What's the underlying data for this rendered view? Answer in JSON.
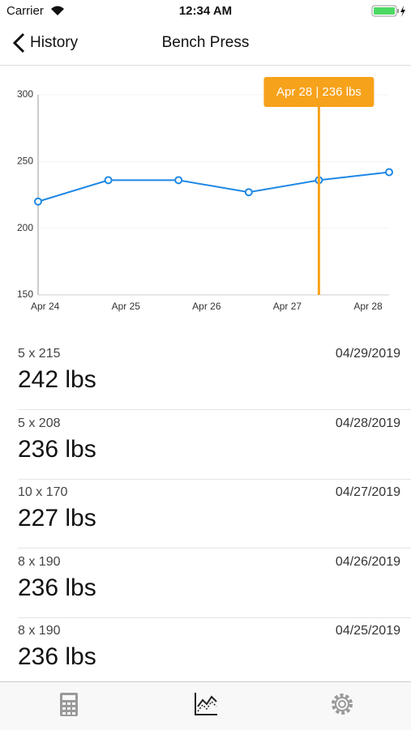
{
  "status_bar": {
    "carrier": "Carrier",
    "time": "12:34 AM"
  },
  "nav": {
    "back": "History",
    "title": "Bench Press"
  },
  "chart_data": {
    "type": "line",
    "x": [
      0,
      1,
      2,
      3,
      4,
      5
    ],
    "values": [
      220,
      236,
      236,
      227,
      236,
      242
    ],
    "color": "#1e88e5",
    "xlim": [
      0,
      5
    ],
    "xticks": [
      {
        "value": 0.1,
        "label": "Apr 24"
      },
      {
        "value": 1.25,
        "label": "Apr 25"
      },
      {
        "value": 2.4,
        "label": "Apr 26"
      },
      {
        "value": 3.55,
        "label": "Apr 27"
      },
      {
        "value": 4.7,
        "label": "Apr 28"
      }
    ],
    "ylim": [
      150,
      300
    ],
    "yticks": [
      150,
      200,
      250,
      300
    ],
    "grid": true,
    "highlight": {
      "x": 4,
      "label": "Apr 28 | 236 lbs",
      "color": "#f7a21b"
    }
  },
  "list": [
    {
      "sets": "5 x 215",
      "weight": "242 lbs",
      "date": "04/29/2019"
    },
    {
      "sets": "5 x 208",
      "weight": "236 lbs",
      "date": "04/28/2019"
    },
    {
      "sets": "10 x 170",
      "weight": "227 lbs",
      "date": "04/27/2019"
    },
    {
      "sets": "8 x 190",
      "weight": "236 lbs",
      "date": "04/26/2019"
    },
    {
      "sets": "8 x 190",
      "weight": "236 lbs",
      "date": "04/25/2019"
    }
  ]
}
